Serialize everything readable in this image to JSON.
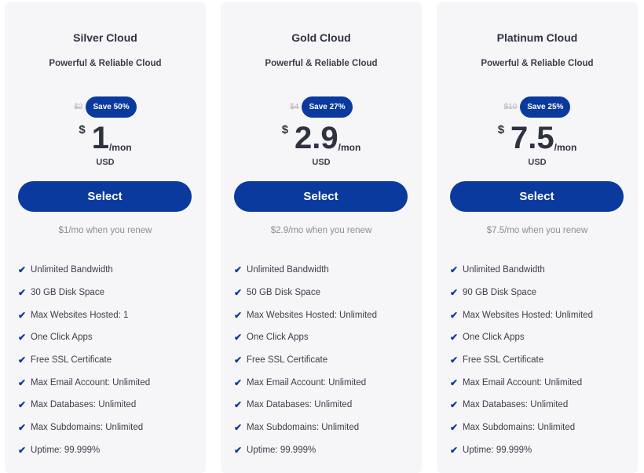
{
  "colors": {
    "accent": "#0b3a9f",
    "card_bg": "#f6f6f9"
  },
  "plans": [
    {
      "name": "Silver Cloud",
      "subtitle": "Powerful & Reliable Cloud",
      "old_price": "$2",
      "save": "Save 50%",
      "currency_symbol": "$",
      "price": "1",
      "period": "/mon",
      "currency": "USD",
      "button": "Select",
      "renew": "$1/mo when you renew",
      "features": [
        "Unlimited Bandwidth",
        "30 GB Disk Space",
        "Max Websites Hosted: 1",
        "One Click Apps",
        "Free SSL Certificate",
        "Max Email Account: Unlimited",
        "Max Databases: Unlimited",
        "Max Subdomains: Unlimited",
        "Uptime: 99.999%"
      ]
    },
    {
      "name": "Gold Cloud",
      "subtitle": "Powerful & Reliable Cloud",
      "old_price": "$4",
      "save": "Save 27%",
      "currency_symbol": "$",
      "price": "2.9",
      "period": "/mon",
      "currency": "USD",
      "button": "Select",
      "renew": "$2.9/mo when you renew",
      "features": [
        "Unlimited Bandwidth",
        "50 GB Disk Space",
        "Max Websites Hosted: Unlimited",
        "One Click Apps",
        "Free SSL Certificate",
        "Max Email Account: Unlimited",
        "Max Databases: Unlimited",
        "Max Subdomains: Unlimited",
        "Uptime: 99.999%"
      ]
    },
    {
      "name": "Platinum Cloud",
      "subtitle": "Powerful & Reliable Cloud",
      "old_price": "$10",
      "save": "Save 25%",
      "currency_symbol": "$",
      "price": "7.5",
      "period": "/mon",
      "currency": "USD",
      "button": "Select",
      "renew": "$7.5/mo when you renew",
      "features": [
        "Unlimited Bandwidth",
        "90 GB Disk Space",
        "Max Websites Hosted: Unlimited",
        "One Click Apps",
        "Free SSL Certificate",
        "Max Email Account: Unlimited",
        "Max Databases: Unlimited",
        "Max Subdomains: Unlimited",
        "Uptime: 99.999%"
      ]
    }
  ]
}
